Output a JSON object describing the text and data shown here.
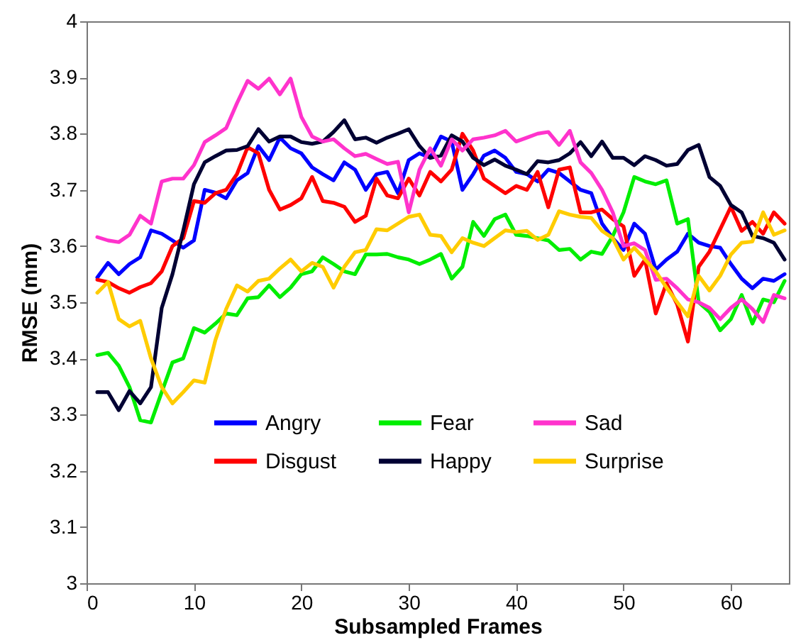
{
  "chart_data": {
    "type": "line",
    "xlabel": "Subsampled Frames",
    "ylabel": "RMSE (mm)",
    "x": [
      1,
      2,
      3,
      4,
      5,
      6,
      7,
      8,
      9,
      10,
      11,
      12,
      13,
      14,
      15,
      16,
      17,
      18,
      19,
      20,
      21,
      22,
      23,
      24,
      25,
      26,
      27,
      28,
      29,
      30,
      31,
      32,
      33,
      34,
      35,
      36,
      37,
      38,
      39,
      40,
      41,
      42,
      43,
      44,
      45,
      46,
      47,
      48,
      49,
      50,
      51,
      52,
      53,
      54,
      55,
      56,
      57,
      58,
      59,
      60,
      61,
      62,
      63,
      64,
      65
    ],
    "xlim": [
      0,
      65.4
    ],
    "xticks": [
      0,
      10,
      20,
      30,
      40,
      50,
      60
    ],
    "ylim": [
      3,
      4
    ],
    "yticks": [
      3,
      3.1,
      3.2,
      3.3,
      3.4,
      3.5,
      3.6,
      3.7,
      3.8,
      3.9,
      4
    ],
    "grid": false,
    "legend": "bottom",
    "line_style": "solid",
    "marker": "none",
    "series": [
      {
        "name": "Angry",
        "color": "#0000ff",
        "values": [
          3.544,
          3.57,
          3.55,
          3.568,
          3.58,
          3.628,
          3.622,
          3.61,
          3.597,
          3.61,
          3.7,
          3.695,
          3.685,
          3.717,
          3.73,
          3.778,
          3.753,
          3.793,
          3.774,
          3.765,
          3.74,
          3.728,
          3.717,
          3.749,
          3.736,
          3.7,
          3.728,
          3.732,
          3.694,
          3.753,
          3.765,
          3.757,
          3.795,
          3.786,
          3.7,
          3.728,
          3.761,
          3.77,
          3.757,
          3.732,
          3.728,
          3.715,
          3.736,
          3.73,
          3.715,
          3.7,
          3.694,
          3.64,
          3.614,
          3.593,
          3.64,
          3.622,
          3.558,
          3.576,
          3.59,
          3.622,
          3.606,
          3.6,
          3.597,
          3.568,
          3.542,
          3.525,
          3.542,
          3.538,
          3.55
        ]
      },
      {
        "name": "Disgust",
        "color": "#ff0000",
        "values": [
          3.54,
          3.536,
          3.525,
          3.517,
          3.527,
          3.534,
          3.555,
          3.6,
          3.614,
          3.68,
          3.677,
          3.694,
          3.7,
          3.728,
          3.776,
          3.765,
          3.7,
          3.665,
          3.673,
          3.685,
          3.723,
          3.68,
          3.677,
          3.67,
          3.643,
          3.654,
          3.72,
          3.69,
          3.685,
          3.72,
          3.69,
          3.732,
          3.715,
          3.736,
          3.8,
          3.77,
          3.72,
          3.707,
          3.694,
          3.707,
          3.7,
          3.732,
          3.669,
          3.736,
          3.74,
          3.66,
          3.66,
          3.665,
          3.648,
          3.635,
          3.547,
          3.576,
          3.48,
          3.534,
          3.496,
          3.43,
          3.563,
          3.59,
          3.63,
          3.67,
          3.627,
          3.643,
          3.622,
          3.66,
          3.64
        ]
      },
      {
        "name": "Fear",
        "color": "#00ee00",
        "values": [
          3.406,
          3.41,
          3.387,
          3.349,
          3.29,
          3.286,
          3.34,
          3.393,
          3.4,
          3.454,
          3.446,
          3.462,
          3.48,
          3.477,
          3.507,
          3.509,
          3.53,
          3.509,
          3.526,
          3.55,
          3.555,
          3.58,
          3.568,
          3.555,
          3.55,
          3.585,
          3.585,
          3.586,
          3.58,
          3.576,
          3.568,
          3.576,
          3.586,
          3.542,
          3.563,
          3.643,
          3.618,
          3.648,
          3.656,
          3.62,
          3.618,
          3.614,
          3.61,
          3.593,
          3.595,
          3.576,
          3.59,
          3.586,
          3.618,
          3.66,
          3.723,
          3.715,
          3.71,
          3.717,
          3.64,
          3.648,
          3.5,
          3.483,
          3.45,
          3.47,
          3.513,
          3.462,
          3.505,
          3.5,
          3.538
        ]
      },
      {
        "name": "Happy",
        "color": "#000033",
        "values": [
          3.34,
          3.34,
          3.308,
          3.342,
          3.32,
          3.349,
          3.49,
          3.55,
          3.627,
          3.71,
          3.749,
          3.76,
          3.77,
          3.771,
          3.778,
          3.808,
          3.786,
          3.795,
          3.795,
          3.785,
          3.782,
          3.786,
          3.803,
          3.824,
          3.79,
          3.793,
          3.784,
          3.793,
          3.8,
          3.808,
          3.778,
          3.757,
          3.761,
          3.797,
          3.786,
          3.757,
          3.744,
          3.754,
          3.743,
          3.736,
          3.728,
          3.751,
          3.749,
          3.753,
          3.765,
          3.785,
          3.76,
          3.786,
          3.757,
          3.757,
          3.744,
          3.76,
          3.753,
          3.743,
          3.746,
          3.771,
          3.78,
          3.723,
          3.707,
          3.673,
          3.66,
          3.618,
          3.614,
          3.606,
          3.576
        ]
      },
      {
        "name": "Sad",
        "color": "#ff33cc",
        "values": [
          3.616,
          3.61,
          3.607,
          3.62,
          3.654,
          3.64,
          3.715,
          3.72,
          3.72,
          3.744,
          3.785,
          3.797,
          3.81,
          3.854,
          3.894,
          3.88,
          3.898,
          3.87,
          3.898,
          3.83,
          3.795,
          3.786,
          3.79,
          3.774,
          3.76,
          3.764,
          3.755,
          3.746,
          3.75,
          3.66,
          3.736,
          3.774,
          3.743,
          3.79,
          3.77,
          3.79,
          3.793,
          3.797,
          3.805,
          3.786,
          3.793,
          3.8,
          3.803,
          3.78,
          3.805,
          3.749,
          3.73,
          3.7,
          3.66,
          3.6,
          3.605,
          3.593,
          3.54,
          3.542,
          3.525,
          3.505,
          3.5,
          3.49,
          3.47,
          3.49,
          3.505,
          3.488,
          3.465,
          3.513,
          3.507
        ]
      },
      {
        "name": "Surprise",
        "color": "#ffcc00",
        "values": [
          3.517,
          3.536,
          3.47,
          3.457,
          3.467,
          3.4,
          3.349,
          3.32,
          3.34,
          3.361,
          3.357,
          3.433,
          3.488,
          3.53,
          3.519,
          3.538,
          3.542,
          3.56,
          3.576,
          3.555,
          3.57,
          3.563,
          3.526,
          3.563,
          3.589,
          3.593,
          3.63,
          3.628,
          3.64,
          3.652,
          3.656,
          3.62,
          3.618,
          3.589,
          3.614,
          3.606,
          3.6,
          3.614,
          3.628,
          3.625,
          3.627,
          3.611,
          3.62,
          3.662,
          3.656,
          3.652,
          3.65,
          3.627,
          3.614,
          3.576,
          3.597,
          3.576,
          3.555,
          3.526,
          3.5,
          3.475,
          3.547,
          3.521,
          3.547,
          3.585,
          3.606,
          3.608,
          3.66,
          3.62,
          3.628
        ]
      }
    ]
  }
}
